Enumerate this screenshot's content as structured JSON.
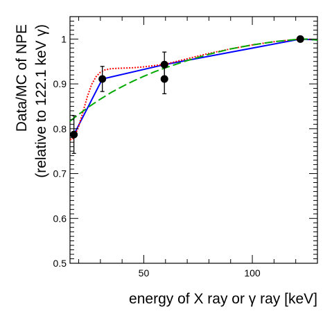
{
  "chart_data": {
    "type": "scatter",
    "title": "",
    "xlabel": "energy of X ray or γ ray [keV]",
    "ylabel_line1": "Data/MC of NPE",
    "ylabel_line2": "(relative to 122.1 keV γ)",
    "xlim": [
      16,
      130
    ],
    "ylim": [
      0.5,
      1.05
    ],
    "x_ticks": [
      50,
      100
    ],
    "x_tick_labels": [
      "50",
      "100"
    ],
    "y_ticks": [
      0.5,
      0.6,
      0.7,
      0.8,
      0.9,
      1.0
    ],
    "y_tick_labels": [
      "0.5",
      "0.6",
      "0.7",
      "0.8",
      "0.9",
      "1"
    ],
    "grid": false,
    "points": [
      {
        "x": 17.8,
        "y": 0.787,
        "err": 0.042
      },
      {
        "x": 30.9,
        "y": 0.911,
        "err": 0.028
      },
      {
        "x": 59.5,
        "y": 0.943,
        "err": 0.028
      },
      {
        "x": 59.5,
        "y": 0.911,
        "err": 0.033
      },
      {
        "x": 122.1,
        "y": 1.0,
        "err": 0.0
      }
    ],
    "series": [
      {
        "color": "#0000ff",
        "style": "solid",
        "x": [
          17.8,
          30.9,
          59.5,
          122.1,
          130
        ],
        "y": [
          0.787,
          0.911,
          0.943,
          1.0,
          0.998
        ]
      },
      {
        "color": "#ff0000",
        "style": "dotted",
        "x": [
          16,
          17,
          18,
          20,
          22,
          24,
          26,
          28,
          30,
          32,
          35,
          40,
          45,
          50,
          55,
          60,
          70,
          80,
          90,
          100,
          110,
          120,
          125,
          130
        ],
        "y": [
          0.776,
          0.776,
          0.782,
          0.805,
          0.838,
          0.872,
          0.899,
          0.916,
          0.926,
          0.931,
          0.934,
          0.935,
          0.936,
          0.938,
          0.941,
          0.944,
          0.956,
          0.968,
          0.978,
          0.987,
          0.994,
          0.999,
          1.0,
          0.998
        ]
      },
      {
        "color": "#00aa00",
        "style": "dashed",
        "x": [
          16,
          20,
          25,
          30,
          35,
          40,
          45,
          50,
          55,
          60,
          70,
          80,
          90,
          100,
          110,
          120,
          125,
          130
        ],
        "y": [
          0.817,
          0.832,
          0.85,
          0.866,
          0.881,
          0.894,
          0.906,
          0.917,
          0.927,
          0.936,
          0.952,
          0.966,
          0.978,
          0.987,
          0.994,
          0.999,
          1.0,
          0.998
        ]
      }
    ]
  }
}
